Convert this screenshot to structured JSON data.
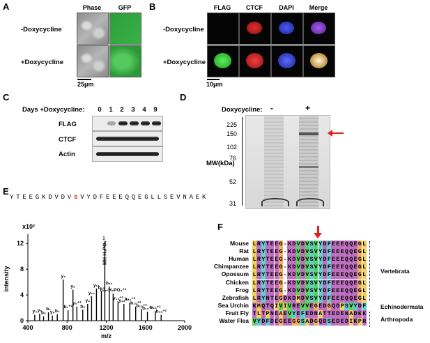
{
  "panels": {
    "A": {
      "letter": "A",
      "col_headers": [
        "Phase",
        "GFP"
      ],
      "rows": [
        "-Doxycycline",
        "+Doxycycline"
      ],
      "scale": "25μm"
    },
    "B": {
      "letter": "B",
      "col_headers": [
        "FLAG",
        "CTCF",
        "DAPI",
        "Merge"
      ],
      "rows": [
        "-Doxycycline",
        "+Doxycycline"
      ],
      "scale": "10μm"
    },
    "C": {
      "letter": "C",
      "days_label": "Days +Doxycycline:",
      "days": [
        "0",
        "1",
        "2",
        "3",
        "4",
        "9"
      ],
      "rows": [
        "FLAG",
        "CTCF",
        "Actin"
      ]
    },
    "D": {
      "letter": "D",
      "dox_label": "Doxycycline:",
      "lanes": [
        "-",
        "+"
      ],
      "mw_label": "MW(kDa)",
      "mw_marks": [
        "225",
        "150",
        "102",
        "76",
        "52",
        "31"
      ]
    },
    "E": {
      "letter": "E",
      "peptide": [
        "Y",
        "T",
        "E",
        "E",
        "G",
        "K",
        "D",
        "V",
        "D",
        "V",
        "s",
        "V",
        "Y",
        "D",
        "F",
        "E",
        "E",
        "E",
        "Q",
        "Q",
        "E",
        "G",
        "L",
        "L",
        "S",
        "E",
        "V",
        "N",
        "A",
        "E",
        "K"
      ],
      "phospho_index": 10,
      "y_multiplier": "x10²",
      "ylabel": "intensity",
      "xlabel": "m/z",
      "precursor_label": "MH-H₃PO₄⁺²"
    },
    "F": {
      "letter": "F",
      "species": [
        "Mouse",
        "Rat",
        "Human",
        "Chimpanzee",
        "Opossum",
        "Chicken",
        "Frog",
        "Zebrafish",
        "Sea Urchin",
        "Fruit Fly",
        "Water Flea"
      ],
      "sequences": [
        "LRYTEEG-KDVDVSVYDFEEEQQEGL",
        "LRYTEEG-KDVDVSVYDFEEEQQEGL",
        "LRYTEEG-KDVDVSVYDFEEEQQEGL",
        "LRYTEEG-KDVDVSVYDFEEEQQEGL",
        "LRYTEEG-KDVDVSVYDFEEEQQEGL",
        "LRYTEEG-KDVDVSVYDFEEEQQEGL",
        "LRYTEEG-KDVDVSVYDFEEEQQEGL",
        "LRYNTEGDKDMDVSVYDFEEEQQEGL",
        "KMQTQIVIVREVVEGEDGQDPSVYDF",
        "TLTPNEAEVYEFEDNATTEDENADKK",
        "VYDFDEGEEGGSADGQDSEDEDIKPR"
      ],
      "groups": [
        "Vertebrata",
        "Echinodermata",
        "Arthropoda"
      ]
    }
  },
  "chart_data": {
    "type": "bar",
    "title": "",
    "xlabel": "m/z",
    "ylabel": "intensity",
    "xlim": [
      400,
      2000
    ],
    "ylim": [
      0,
      13
    ],
    "x_ticks": [
      "400",
      "800",
      "1200",
      "1600",
      "2000"
    ],
    "y_ticks": [
      "0",
      "4",
      "8",
      "12"
    ],
    "peaks": [
      {
        "x": 470,
        "y": 0.9,
        "label": "y₄"
      },
      {
        "x": 520,
        "y": 1.1,
        "label": "y₅"
      },
      {
        "x": 560,
        "y": 0.7,
        "label": "b₅"
      },
      {
        "x": 610,
        "y": 1.3,
        "label": "b₆"
      },
      {
        "x": 650,
        "y": 0.8,
        "label": "y₆"
      },
      {
        "x": 700,
        "y": 1.0,
        "label": "b₇"
      },
      {
        "x": 760,
        "y": 6.4,
        "label": "y₇"
      },
      {
        "x": 810,
        "y": 1.6,
        "label": "b₇⁺²"
      },
      {
        "x": 860,
        "y": 4.8,
        "label": "y₈"
      },
      {
        "x": 900,
        "y": 2.2,
        "label": "y₈⁺²"
      },
      {
        "x": 960,
        "y": 1.7,
        "label": "b₉"
      },
      {
        "x": 1010,
        "y": 2.6,
        "label": "y₉"
      },
      {
        "x": 1050,
        "y": 3.8,
        "label": "y₁₀"
      },
      {
        "x": 1100,
        "y": 5.0,
        "label": "y₁₁"
      },
      {
        "x": 1150,
        "y": 4.6,
        "label": "b₁₀"
      },
      {
        "x": 1185,
        "y": 12.3,
        "label": "MH-H₃PO₄⁺²"
      },
      {
        "x": 1230,
        "y": 5.3,
        "label": "b₁₁"
      },
      {
        "x": 1270,
        "y": 4.2,
        "label": "b₁₂-H₃PO₄⁺²"
      },
      {
        "x": 1320,
        "y": 3.0,
        "label": "y₁₂⁺²"
      },
      {
        "x": 1380,
        "y": 2.6,
        "label": "y₁₃⁺²"
      },
      {
        "x": 1440,
        "y": 2.8,
        "label": "b₁₄⁺²"
      },
      {
        "x": 1500,
        "y": 2.2,
        "label": "b₁₅⁺²"
      },
      {
        "x": 1560,
        "y": 1.8,
        "label": "b₁₆⁺²"
      },
      {
        "x": 1620,
        "y": 1.4,
        "label": "b₁₇⁺²"
      },
      {
        "x": 1700,
        "y": 1.5,
        "label": "b₁₈⁺²"
      },
      {
        "x": 1760,
        "y": 0.9,
        "label": "b₁₉⁺²"
      }
    ]
  }
}
